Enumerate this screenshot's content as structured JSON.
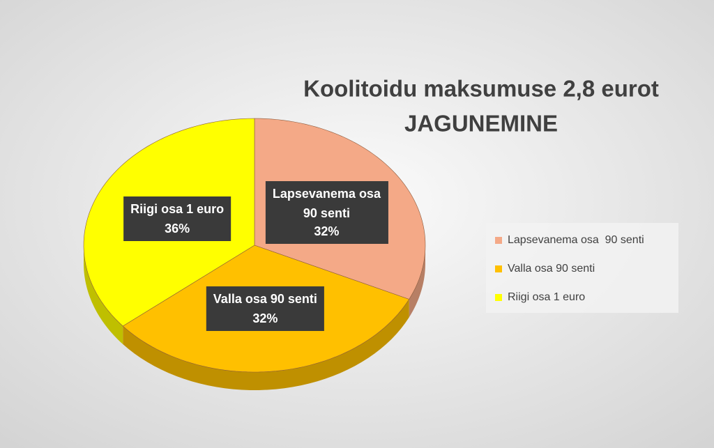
{
  "chart_data": {
    "type": "pie",
    "title": "Koolitoidu maksumuse 2,8 eurot",
    "subtitle": "JAGUNEMINE",
    "categories": [
      "Lapsevanema osa  90 senti",
      "Valla osa 90 senti",
      "Riigi osa 1 euro"
    ],
    "values": [
      32,
      32,
      36
    ],
    "value_labels": [
      "32%",
      "32%",
      "36%"
    ],
    "colors": [
      "#f4a987",
      "#ffc000",
      "#ffff00"
    ],
    "legend": "right"
  }
}
